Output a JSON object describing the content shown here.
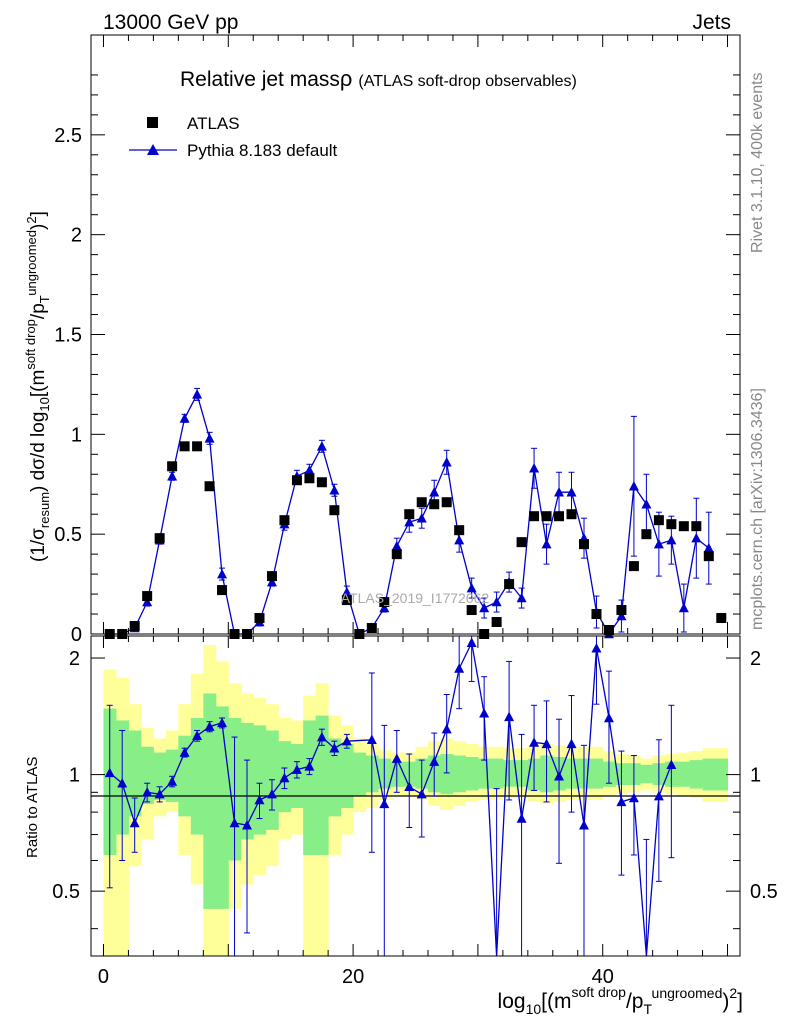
{
  "header": {
    "left": "13000 GeV pp",
    "right": "Jets"
  },
  "side_labels": {
    "rivet": "Rivet 3.1.10,  400k events",
    "mcplots": "mcplots.cern.ch [arXiv:1306.3436]"
  },
  "watermark": "ATLAS_2019_I1772062",
  "chart_data": {
    "type": "scatter",
    "title_main": "Relative jet mass",
    "title_rho": "ρ",
    "title_sub": "(ATLAS soft-drop observables)",
    "xlabel": "log10[(m^(soft drop)/p_T^(ungroomed))^2]",
    "ylabel": "(1/σ_resum) dσ/d log10[(m^(soft drop)/p_T^(ungroomed))^2]",
    "ratio_ylabel": "Ratio to ATLAS",
    "xlim": [
      -1,
      51
    ],
    "ylim": [
      0,
      3
    ],
    "ratio_ylim": [
      0.34,
      2.28
    ],
    "x_ticks": [
      "0",
      "20",
      "40"
    ],
    "y_ticks": [
      "0",
      "0.5",
      "1",
      "1.5",
      "2",
      "2.5"
    ],
    "ratio_ticks": [
      "0.5",
      "1",
      "2"
    ],
    "legend": {
      "atlas": "ATLAS",
      "pythia": "Pythia 8.183 default"
    },
    "colors": {
      "mc": "#0000cc",
      "band_outer": "#ffff99",
      "band_inner": "#88ee88"
    },
    "atlas": [
      [
        0.5,
        0.0
      ],
      [
        1.5,
        0.0
      ],
      [
        2.5,
        0.04
      ],
      [
        3.5,
        0.19
      ],
      [
        4.5,
        0.48
      ],
      [
        5.5,
        0.84
      ],
      [
        6.5,
        0.94
      ],
      [
        7.5,
        0.94
      ],
      [
        8.5,
        0.74
      ],
      [
        9.5,
        0.22
      ],
      [
        10.5,
        0.0
      ],
      [
        11.5,
        0.0
      ],
      [
        12.5,
        0.08
      ],
      [
        13.5,
        0.29
      ],
      [
        14.5,
        0.57
      ],
      [
        15.5,
        0.77
      ],
      [
        16.5,
        0.78
      ],
      [
        17.5,
        0.76
      ],
      [
        18.5,
        0.62
      ],
      [
        19.5,
        0.17
      ],
      [
        20.5,
        0.0
      ],
      [
        21.5,
        0.03
      ],
      [
        22.5,
        0.16
      ],
      [
        23.5,
        0.4
      ],
      [
        24.5,
        0.6
      ],
      [
        25.5,
        0.66
      ],
      [
        26.5,
        0.65
      ],
      [
        27.5,
        0.66
      ],
      [
        28.5,
        0.52
      ],
      [
        29.5,
        0.12
      ],
      [
        30.5,
        0.0
      ],
      [
        31.5,
        0.06
      ],
      [
        32.5,
        0.25
      ],
      [
        33.5,
        0.46
      ],
      [
        34.5,
        0.59
      ],
      [
        35.5,
        0.59
      ],
      [
        36.5,
        0.59
      ],
      [
        37.5,
        0.6
      ],
      [
        38.5,
        0.45
      ],
      [
        39.5,
        0.1
      ],
      [
        40.5,
        0.02
      ],
      [
        41.5,
        0.12
      ],
      [
        42.5,
        0.34
      ],
      [
        43.5,
        0.5
      ],
      [
        44.5,
        0.57
      ],
      [
        45.5,
        0.55
      ],
      [
        46.5,
        0.54
      ],
      [
        47.5,
        0.54
      ],
      [
        48.5,
        0.39
      ],
      [
        49.5,
        0.08
      ]
    ],
    "pythia": [
      [
        0.5,
        0.0
      ],
      [
        1.5,
        0.0
      ],
      [
        2.5,
        0.03
      ],
      [
        3.5,
        0.16
      ],
      [
        4.5,
        0.47
      ],
      [
        5.5,
        0.79
      ],
      [
        6.5,
        1.08
      ],
      [
        7.5,
        1.2
      ],
      [
        8.5,
        0.98
      ],
      [
        9.5,
        0.3
      ],
      [
        10.5,
        0.0
      ],
      [
        11.5,
        0.0
      ],
      [
        12.5,
        0.06
      ],
      [
        13.5,
        0.26
      ],
      [
        14.5,
        0.55
      ],
      [
        15.5,
        0.79
      ],
      [
        16.5,
        0.82
      ],
      [
        17.5,
        0.94
      ],
      [
        18.5,
        0.72
      ],
      [
        19.5,
        0.21
      ],
      [
        20.5,
        0.0
      ],
      [
        21.5,
        0.03
      ],
      [
        22.5,
        0.13
      ],
      [
        23.5,
        0.44
      ],
      [
        24.5,
        0.56
      ],
      [
        25.5,
        0.58
      ],
      [
        26.5,
        0.71
      ],
      [
        27.5,
        0.86
      ],
      [
        28.5,
        0.47
      ],
      [
        29.5,
        0.23
      ],
      [
        30.5,
        0.13
      ],
      [
        31.5,
        0.16
      ],
      [
        32.5,
        0.26
      ],
      [
        33.5,
        0.18
      ],
      [
        34.5,
        0.83
      ],
      [
        35.5,
        0.45
      ],
      [
        36.5,
        0.71
      ],
      [
        37.5,
        0.71
      ],
      [
        38.5,
        0.48
      ],
      [
        39.5,
        0.11
      ],
      [
        40.5,
        0.0
      ],
      [
        41.5,
        0.09
      ],
      [
        42.5,
        0.74
      ],
      [
        43.5,
        0.65
      ],
      [
        44.5,
        0.45
      ],
      [
        45.5,
        0.47
      ],
      [
        46.5,
        0.13
      ],
      [
        47.5,
        0.48
      ],
      [
        48.5,
        0.43
      ]
    ],
    "pythia_err": [
      0.0,
      0.0,
      0.01,
      0.02,
      0.02,
      0.02,
      0.02,
      0.03,
      0.03,
      0.03,
      0.0,
      0.0,
      0.02,
      0.02,
      0.03,
      0.03,
      0.03,
      0.03,
      0.03,
      0.03,
      0.0,
      0.02,
      0.02,
      0.04,
      0.05,
      0.05,
      0.06,
      0.06,
      0.06,
      0.05,
      0.05,
      0.05,
      0.05,
      0.05,
      0.1,
      0.1,
      0.1,
      0.1,
      0.1,
      0.08,
      0.0,
      0.08,
      0.35,
      0.15,
      0.16,
      0.12,
      0.12,
      0.2,
      0.18
    ],
    "ratio": [
      [
        0.5,
        1.01
      ],
      [
        1.5,
        0.95
      ],
      [
        2.5,
        0.75
      ],
      [
        3.5,
        0.9
      ],
      [
        4.5,
        0.89
      ],
      [
        5.5,
        0.96
      ],
      [
        6.5,
        1.14
      ],
      [
        7.5,
        1.26
      ],
      [
        8.5,
        1.33
      ],
      [
        9.5,
        1.36
      ],
      [
        10.5,
        0.75
      ],
      [
        11.5,
        0.74
      ],
      [
        12.5,
        0.86
      ],
      [
        13.5,
        0.89
      ],
      [
        14.5,
        0.98
      ],
      [
        15.5,
        1.03
      ],
      [
        16.5,
        1.05
      ],
      [
        17.5,
        1.25
      ],
      [
        18.5,
        1.17
      ],
      [
        19.5,
        1.22
      ],
      [
        21.5,
        1.23
      ],
      [
        22.5,
        0.84
      ],
      [
        23.5,
        1.1
      ],
      [
        24.5,
        0.93
      ],
      [
        25.5,
        0.89
      ],
      [
        26.5,
        1.08
      ],
      [
        27.5,
        1.31
      ],
      [
        28.5,
        1.88
      ],
      [
        29.5,
        2.19
      ],
      [
        30.5,
        1.44
      ],
      [
        31.5,
        0.32
      ],
      [
        32.5,
        1.41
      ],
      [
        33.5,
        0.77
      ],
      [
        34.5,
        1.21
      ],
      [
        35.5,
        1.2
      ],
      [
        36.5,
        0.99
      ],
      [
        37.5,
        1.2
      ],
      [
        38.5,
        0.74
      ],
      [
        39.5,
        2.12
      ],
      [
        40.5,
        1.4
      ],
      [
        41.5,
        0.85
      ],
      [
        42.5,
        0.87
      ],
      [
        43.5,
        0.28
      ],
      [
        44.5,
        0.88
      ],
      [
        45.5,
        1.06
      ]
    ],
    "ratio_err": [
      0.5,
      0.35,
      0.12,
      0.05,
      0.04,
      0.03,
      0.03,
      0.04,
      0.04,
      0.04,
      0.5,
      0.35,
      0.09,
      0.08,
      0.06,
      0.05,
      0.05,
      0.06,
      0.05,
      0.05,
      0.6,
      0.5,
      0.2,
      0.2,
      0.2,
      0.2,
      0.3,
      0.4,
      0.45,
      0.35,
      0.6,
      0.55,
      0.5,
      0.3,
      0.35,
      0.4,
      0.4,
      0.45,
      0.6,
      0.45,
      0.3,
      0.25,
      0.4,
      0.35,
      0.45
    ],
    "band_outer": [
      [
        0,
        1,
        0.3,
        1.87
      ],
      [
        1,
        2,
        0.3,
        1.78
      ],
      [
        2,
        3,
        0.58,
        1.52
      ],
      [
        3,
        4,
        0.68,
        1.32
      ],
      [
        4,
        5,
        0.78,
        1.24
      ],
      [
        5,
        6,
        0.8,
        1.3
      ],
      [
        6,
        7,
        0.62,
        1.52
      ],
      [
        7,
        8,
        0.52,
        1.82
      ],
      [
        8,
        9,
        0.3,
        2.16
      ],
      [
        9,
        10,
        0.3,
        1.96
      ],
      [
        10,
        11,
        0.45,
        1.72
      ],
      [
        11,
        12,
        0.52,
        1.62
      ],
      [
        12,
        13,
        0.55,
        1.58
      ],
      [
        13,
        14,
        0.58,
        1.52
      ],
      [
        14,
        15,
        0.68,
        1.4
      ],
      [
        15,
        16,
        0.7,
        1.38
      ],
      [
        16,
        17,
        0.3,
        1.6
      ],
      [
        17,
        18,
        0.3,
        1.72
      ],
      [
        18,
        19,
        0.62,
        1.42
      ],
      [
        19,
        20,
        0.7,
        1.34
      ],
      [
        20,
        21,
        0.8,
        1.24
      ],
      [
        21,
        22,
        0.82,
        1.2
      ],
      [
        22,
        23,
        0.86,
        1.16
      ],
      [
        23,
        24,
        0.88,
        1.14
      ],
      [
        24,
        25,
        0.88,
        1.14
      ],
      [
        25,
        26,
        0.86,
        1.18
      ],
      [
        26,
        27,
        0.83,
        1.22
      ],
      [
        27,
        28,
        0.81,
        1.24
      ],
      [
        28,
        29,
        0.83,
        1.22
      ],
      [
        29,
        30,
        0.85,
        1.2
      ],
      [
        30,
        31,
        0.86,
        1.18
      ],
      [
        31,
        32,
        0.86,
        1.18
      ],
      [
        32,
        33,
        0.87,
        1.17
      ],
      [
        33,
        34,
        0.87,
        1.17
      ],
      [
        34,
        35,
        0.85,
        1.19
      ],
      [
        35,
        36,
        0.84,
        1.2
      ],
      [
        36,
        37,
        0.85,
        1.19
      ],
      [
        37,
        38,
        0.86,
        1.18
      ],
      [
        38,
        39,
        0.86,
        1.18
      ],
      [
        39,
        40,
        0.86,
        1.18
      ],
      [
        40,
        41,
        0.88,
        1.15
      ],
      [
        41,
        42,
        0.89,
        1.13
      ],
      [
        42,
        43,
        0.9,
        1.12
      ],
      [
        43,
        44,
        0.91,
        1.1
      ],
      [
        44,
        45,
        0.9,
        1.12
      ],
      [
        45,
        46,
        0.89,
        1.13
      ],
      [
        46,
        47,
        0.88,
        1.14
      ],
      [
        47,
        48,
        0.87,
        1.15
      ],
      [
        48,
        49,
        0.85,
        1.17
      ],
      [
        49,
        50,
        0.85,
        1.17
      ]
    ],
    "band_inner": [
      [
        0,
        1,
        0.62,
        1.48
      ],
      [
        1,
        2,
        0.7,
        1.38
      ],
      [
        2,
        3,
        0.78,
        1.3
      ],
      [
        3,
        4,
        0.84,
        1.18
      ],
      [
        4,
        5,
        0.86,
        1.14
      ],
      [
        5,
        6,
        0.85,
        1.16
      ],
      [
        6,
        7,
        0.78,
        1.26
      ],
      [
        7,
        8,
        0.7,
        1.4
      ],
      [
        8,
        9,
        0.45,
        1.62
      ],
      [
        9,
        10,
        0.45,
        1.5
      ],
      [
        10,
        11,
        0.6,
        1.4
      ],
      [
        11,
        12,
        0.68,
        1.36
      ],
      [
        12,
        13,
        0.7,
        1.34
      ],
      [
        13,
        14,
        0.72,
        1.3
      ],
      [
        14,
        15,
        0.8,
        1.22
      ],
      [
        15,
        16,
        0.82,
        1.2
      ],
      [
        16,
        17,
        0.62,
        1.38
      ],
      [
        17,
        18,
        0.62,
        1.42
      ],
      [
        18,
        19,
        0.78,
        1.24
      ],
      [
        19,
        20,
        0.82,
        1.2
      ],
      [
        20,
        21,
        0.88,
        1.14
      ],
      [
        21,
        22,
        0.9,
        1.12
      ],
      [
        22,
        23,
        0.92,
        1.1
      ],
      [
        23,
        24,
        0.93,
        1.08
      ],
      [
        24,
        25,
        0.93,
        1.08
      ],
      [
        25,
        26,
        0.92,
        1.1
      ],
      [
        26,
        27,
        0.9,
        1.12
      ],
      [
        27,
        28,
        0.89,
        1.13
      ],
      [
        28,
        29,
        0.9,
        1.12
      ],
      [
        29,
        30,
        0.91,
        1.11
      ],
      [
        30,
        31,
        0.92,
        1.1
      ],
      [
        31,
        32,
        0.92,
        1.1
      ],
      [
        32,
        33,
        0.93,
        1.09
      ],
      [
        33,
        34,
        0.93,
        1.09
      ],
      [
        34,
        35,
        0.91,
        1.1
      ],
      [
        35,
        36,
        0.9,
        1.12
      ],
      [
        36,
        37,
        0.91,
        1.11
      ],
      [
        37,
        38,
        0.92,
        1.1
      ],
      [
        38,
        39,
        0.92,
        1.1
      ],
      [
        39,
        40,
        0.92,
        1.1
      ],
      [
        40,
        41,
        0.93,
        1.08
      ],
      [
        41,
        42,
        0.94,
        1.07
      ],
      [
        42,
        43,
        0.94,
        1.07
      ],
      [
        43,
        44,
        0.95,
        1.06
      ],
      [
        44,
        45,
        0.94,
        1.07
      ],
      [
        45,
        46,
        0.93,
        1.08
      ],
      [
        46,
        47,
        0.93,
        1.08
      ],
      [
        47,
        48,
        0.92,
        1.09
      ],
      [
        48,
        49,
        0.91,
        1.1
      ],
      [
        49,
        50,
        0.91,
        1.1
      ]
    ]
  }
}
